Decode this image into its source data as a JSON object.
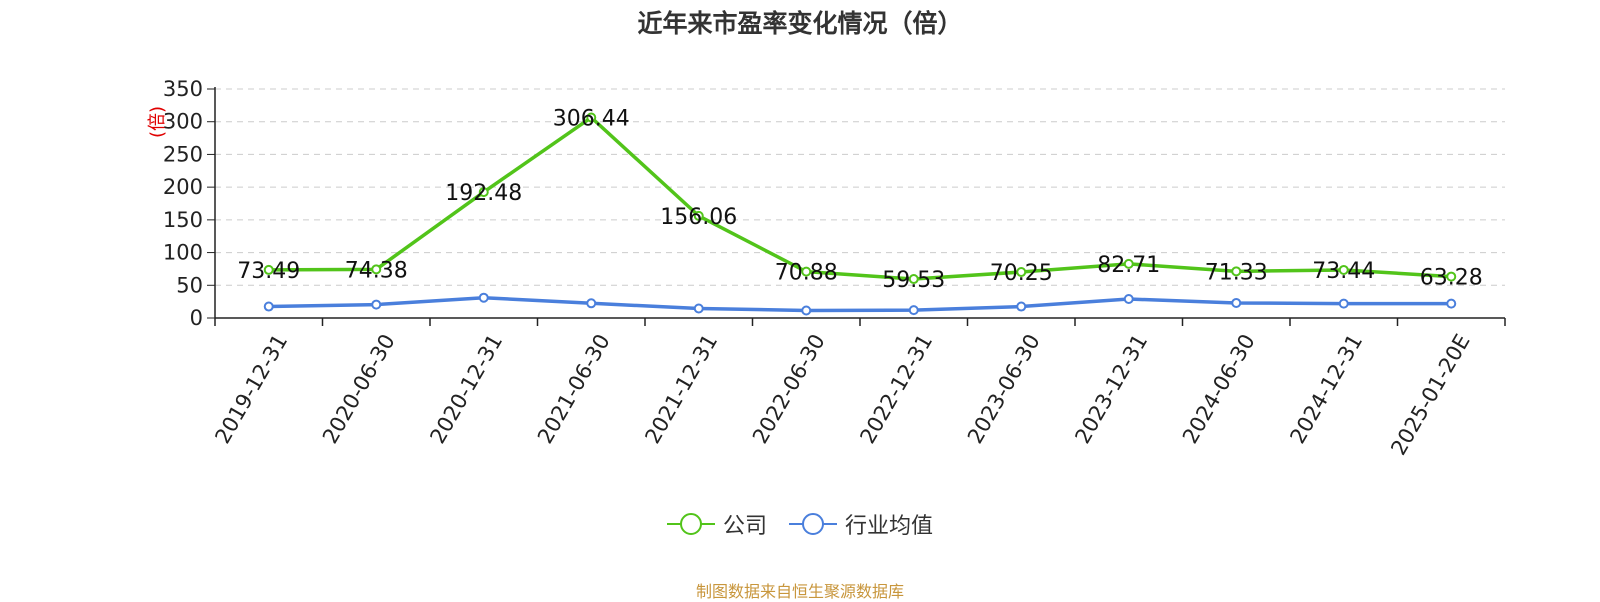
{
  "title": "近年来市盈率变化情况（倍）",
  "source_note": "制图数据来自恒生聚源数据库",
  "colors": {
    "company": "#52c41a",
    "industry": "#4a7fdc",
    "ylabel": "#e00000",
    "grid": "#cccccc",
    "axis": "#222222"
  },
  "chart_data": {
    "type": "line",
    "title": "近年来市盈率变化情况（倍）",
    "ylabel": "(倍)",
    "xlabel": "",
    "ylim": [
      0,
      350
    ],
    "yticks": [
      0,
      50,
      100,
      150,
      200,
      250,
      300,
      350
    ],
    "grid": true,
    "legend_position": "bottom",
    "categories": [
      "2019-12-31",
      "2020-06-30",
      "2020-12-31",
      "2021-06-30",
      "2021-12-31",
      "2022-06-30",
      "2022-12-31",
      "2023-06-30",
      "2023-12-31",
      "2024-06-30",
      "2024-12-31",
      "2025-01-20E"
    ],
    "series": [
      {
        "name": "公司",
        "color": "#52c41a",
        "values": [
          73.49,
          74.38,
          192.48,
          306.44,
          156.06,
          70.88,
          59.53,
          70.25,
          82.71,
          71.33,
          73.44,
          63.28
        ],
        "labels": [
          "73.49",
          "74.38",
          "192.48",
          "306.44",
          "156.06",
          "70.88",
          "59.53",
          "70.25",
          "82.71",
          "71.33",
          "73.44",
          "63.28"
        ]
      },
      {
        "name": "行业均值",
        "color": "#4a7fdc",
        "values": [
          17.5,
          20.5,
          31,
          22.5,
          14.5,
          11.5,
          12,
          17.5,
          29,
          23,
          22,
          22
        ]
      }
    ]
  }
}
